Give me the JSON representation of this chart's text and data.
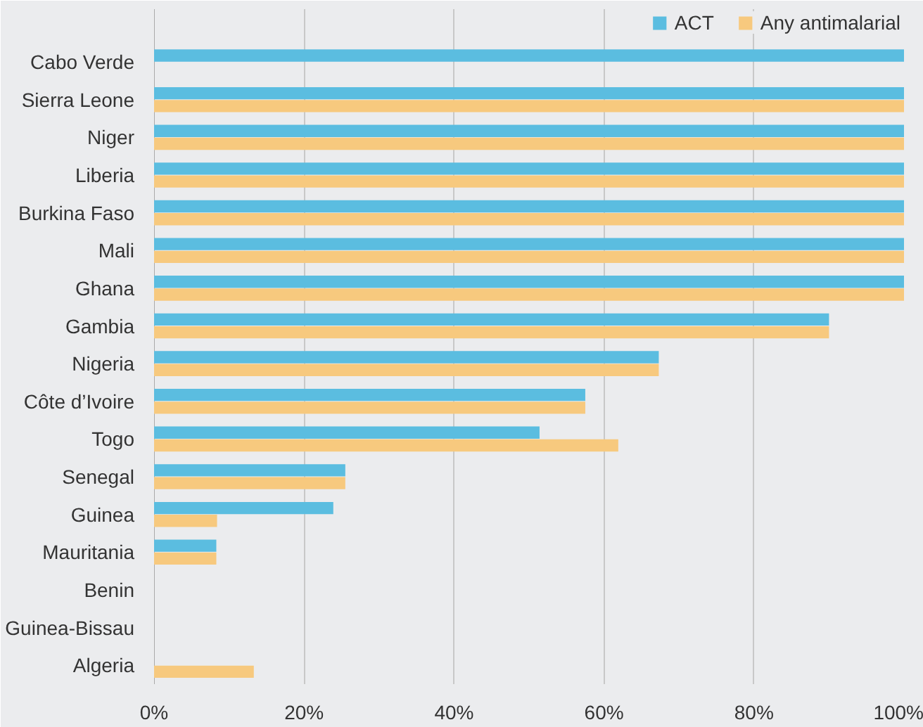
{
  "chart_data": {
    "type": "bar",
    "orientation": "horizontal",
    "categories": [
      "Cabo Verde",
      "Sierra Leone",
      "Niger",
      "Liberia",
      "Burkina Faso",
      "Mali",
      "Ghana",
      "Gambia",
      "Nigeria",
      "Côte d’Ivoire",
      "Togo",
      "Senegal",
      "Guinea",
      "Mauritania",
      "Benin",
      "Guinea-Bissau",
      "Algeria"
    ],
    "series": [
      {
        "name": "ACT",
        "color": "#5bbde0",
        "values": [
          100,
          100,
          100,
          100,
          100,
          100,
          100,
          90,
          67.3,
          57.5,
          51.4,
          25.5,
          23.9,
          8.3,
          null,
          null,
          null
        ]
      },
      {
        "name": "Any antimalarial",
        "color": "#f7c97e",
        "values": [
          null,
          100,
          100,
          100,
          100,
          100,
          100,
          90,
          67.3,
          57.5,
          61.9,
          25.5,
          8.4,
          8.3,
          null,
          null,
          13.3
        ]
      }
    ],
    "xlim": [
      0,
      100
    ],
    "xticks": [
      {
        "value": 0,
        "label": "0%"
      },
      {
        "value": 20,
        "label": "20%"
      },
      {
        "value": 40,
        "label": "40%"
      },
      {
        "value": 60,
        "label": "60%"
      },
      {
        "value": 80,
        "label": "80%"
      },
      {
        "value": 100,
        "label": "100%"
      }
    ],
    "grid": "x",
    "legend": "top right"
  }
}
